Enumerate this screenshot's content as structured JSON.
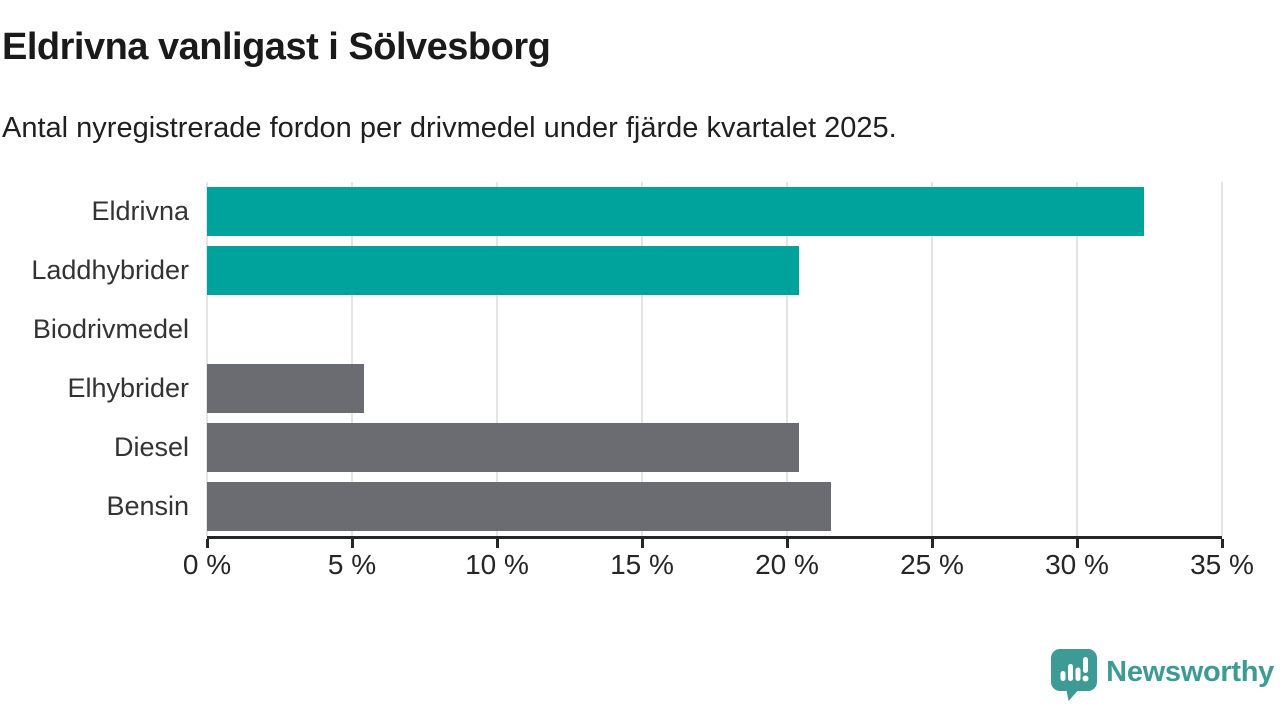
{
  "header": {
    "title": "Eldrivna vanligast i Sölvesborg",
    "subtitle": "Antal nyregistrerade fordon per drivmedel under fjärde kvartalet 2025."
  },
  "chart_data": {
    "type": "bar",
    "orientation": "horizontal",
    "title": "Eldrivna vanligast i Sölvesborg",
    "categories": [
      "Eldrivna",
      "Laddhybrider",
      "Biodrivmedel",
      "Elhybrider",
      "Diesel",
      "Bensin"
    ],
    "values": [
      32.3,
      20.4,
      0,
      5.4,
      20.4,
      21.5
    ],
    "unit": "%",
    "bar_colors": [
      "#00a39c",
      "#00a39c",
      "#6b6b72",
      "#6b6b72",
      "#6b6b72",
      "#6b6b72"
    ],
    "xlim": [
      0,
      35
    ],
    "xticks": [
      0,
      5,
      10,
      15,
      20,
      25,
      30,
      35
    ],
    "xtick_labels": [
      "0 %",
      "5 %",
      "10 %",
      "15 %",
      "20 %",
      "25 %",
      "30 %",
      "35 %"
    ],
    "grid": "vertical",
    "legend": "none"
  },
  "branding": {
    "logo_text": "Newsworthy",
    "logo_color": "#3d9a95",
    "logo_icon": "bar-chart-speech-bubble-icon"
  },
  "colors": {
    "accent_teal": "#00a39c",
    "neutral_gray": "#6b6b72",
    "gridline": "#e4e4e4",
    "axis": "#262626",
    "text": "#1a1a1a"
  }
}
